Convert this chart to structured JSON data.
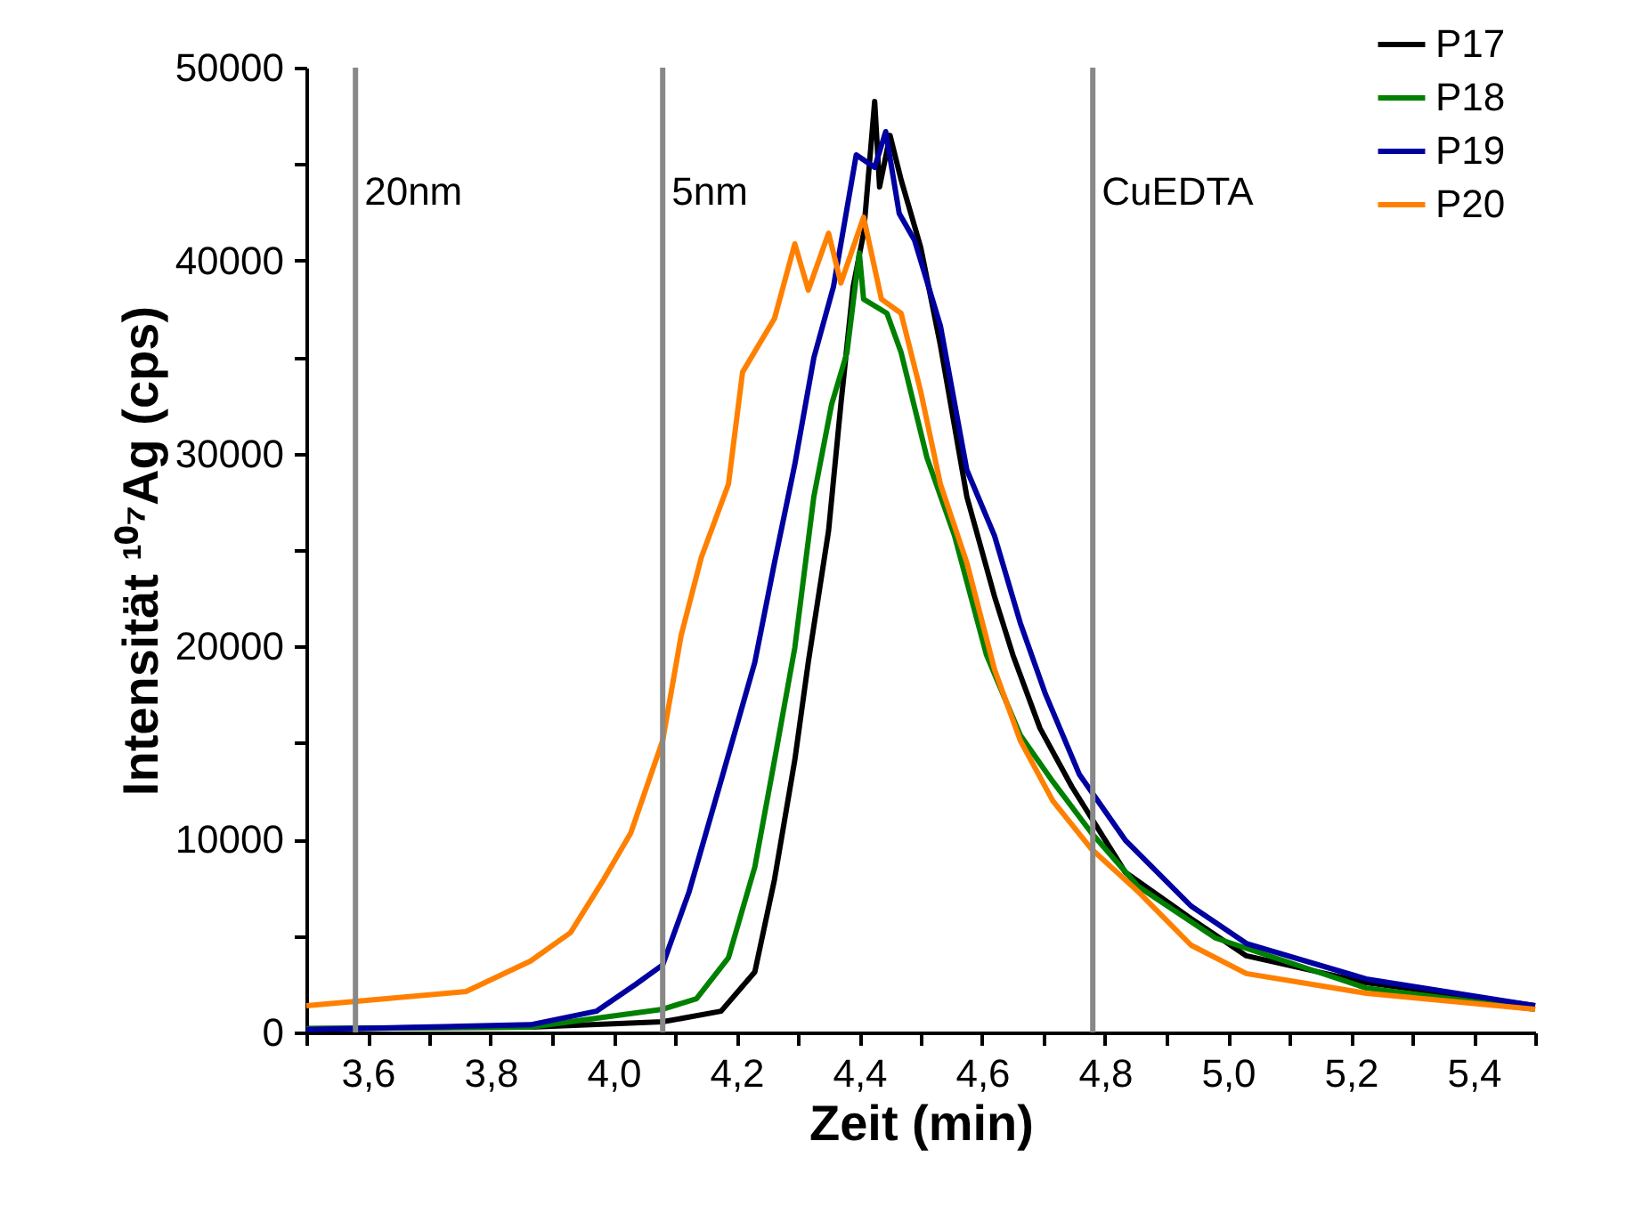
{
  "chart_data": {
    "type": "line",
    "xlabel": "Zeit (min)",
    "ylabel": "Intensität ¹⁰⁷Ag (cps)",
    "xlim": [
      3.5,
      5.5
    ],
    "ylim": [
      0,
      50000
    ],
    "xticks": [
      {
        "value": 3.5,
        "label": null
      },
      {
        "value": 3.6,
        "label": "3,6"
      },
      {
        "value": 3.7,
        "label": null
      },
      {
        "value": 3.8,
        "label": "3,8"
      },
      {
        "value": 3.9,
        "label": null
      },
      {
        "value": 4.0,
        "label": "4,0"
      },
      {
        "value": 4.1,
        "label": null
      },
      {
        "value": 4.2,
        "label": "4,2"
      },
      {
        "value": 4.3,
        "label": null
      },
      {
        "value": 4.4,
        "label": "4,4"
      },
      {
        "value": 4.5,
        "label": null
      },
      {
        "value": 4.6,
        "label": "4,6"
      },
      {
        "value": 4.7,
        "label": null
      },
      {
        "value": 4.8,
        "label": "4,8"
      },
      {
        "value": 4.9,
        "label": null
      },
      {
        "value": 5.0,
        "label": "5,0"
      },
      {
        "value": 5.1,
        "label": null
      },
      {
        "value": 5.2,
        "label": "5,2"
      },
      {
        "value": 5.3,
        "label": null
      },
      {
        "value": 5.4,
        "label": "5,4"
      },
      {
        "value": 5.5,
        "label": null
      }
    ],
    "yticks": [
      0,
      {
        "value": 5000,
        "label": null
      },
      10000,
      {
        "value": 15000,
        "label": null
      },
      20000,
      {
        "value": 25000,
        "label": null
      },
      30000,
      {
        "value": 35000,
        "label": null
      },
      40000,
      {
        "value": 45000,
        "label": null
      },
      50000
    ],
    "legend": "top right",
    "ref_lines": [
      {
        "axis": "x",
        "value": 3.58,
        "label": "20nm",
        "color": "#888888"
      },
      {
        "axis": "x",
        "value": 4.08,
        "label": "5nm",
        "color": "#888888"
      },
      {
        "axis": "x",
        "value": 4.78,
        "label": "CuEDTA",
        "color": "#888888"
      }
    ],
    "series": [
      {
        "name": "P17",
        "color": "#000000",
        "x": [
          3.5,
          3.865,
          4.08,
          4.175,
          4.23,
          4.262,
          4.295,
          4.317,
          4.35,
          4.37,
          4.39,
          4.407,
          4.425,
          4.433,
          4.45,
          4.468,
          4.5,
          4.532,
          4.575,
          4.62,
          4.65,
          4.694,
          4.746,
          4.833,
          4.94,
          5.03,
          5.225,
          5.5
        ],
        "values": [
          200,
          280,
          550,
          1100,
          3140,
          7930,
          14110,
          19190,
          26000,
          32560,
          38650,
          41420,
          48250,
          43820,
          46490,
          44190,
          40680,
          35610,
          27770,
          22600,
          19560,
          15770,
          12730,
          8300,
          5900,
          3970,
          2580,
          1380
        ]
      },
      {
        "name": "P18",
        "color": "#008000",
        "x": [
          3.5,
          3.865,
          4.08,
          4.135,
          4.187,
          4.23,
          4.262,
          4.295,
          4.326,
          4.355,
          4.38,
          4.4,
          4.407,
          4.445,
          4.468,
          4.51,
          4.555,
          4.607,
          4.662,
          4.715,
          4.778,
          4.854,
          4.98,
          5.225,
          5.5
        ],
        "values": [
          200,
          280,
          1200,
          1750,
          3870,
          8580,
          14110,
          19930,
          27770,
          32560,
          35240,
          40400,
          38000,
          37270,
          35240,
          29800,
          25740,
          19560,
          15410,
          13000,
          10330,
          7560,
          4890,
          2300,
          1200
        ]
      },
      {
        "name": "P19",
        "color": "#0000a0",
        "x": [
          3.5,
          3.865,
          3.972,
          4.036,
          4.08,
          4.123,
          4.178,
          4.23,
          4.262,
          4.295,
          4.326,
          4.358,
          4.375,
          4.395,
          4.425,
          4.443,
          4.465,
          4.49,
          4.532,
          4.575,
          4.62,
          4.662,
          4.703,
          4.758,
          4.833,
          4.94,
          5.03,
          5.225,
          5.5
        ],
        "values": [
          150,
          400,
          1100,
          2490,
          3500,
          7290,
          13380,
          19190,
          24350,
          29430,
          34960,
          38650,
          41790,
          45480,
          44830,
          46680,
          42440,
          41050,
          36620,
          29150,
          25740,
          21220,
          17530,
          13380,
          9960,
          6550,
          4610,
          2770,
          1380
        ]
      },
      {
        "name": "P20",
        "color": "#ff8000",
        "x": [
          3.5,
          3.76,
          3.865,
          3.93,
          3.984,
          4.028,
          4.08,
          4.11,
          4.143,
          4.187,
          4.21,
          4.262,
          4.295,
          4.317,
          4.35,
          4.37,
          4.407,
          4.436,
          4.468,
          4.5,
          4.532,
          4.575,
          4.62,
          4.662,
          4.715,
          4.778,
          4.854,
          4.94,
          5.03,
          5.225,
          5.5
        ],
        "values": [
          1380,
          2120,
          3700,
          5170,
          7930,
          10330,
          15130,
          20570,
          24630,
          28410,
          34220,
          37000,
          40870,
          38470,
          41420,
          38840,
          42250,
          38000,
          37270,
          33210,
          28410,
          24350,
          18820,
          15130,
          12000,
          9500,
          7290,
          4520,
          3050,
          2030,
          1200
        ]
      }
    ]
  }
}
